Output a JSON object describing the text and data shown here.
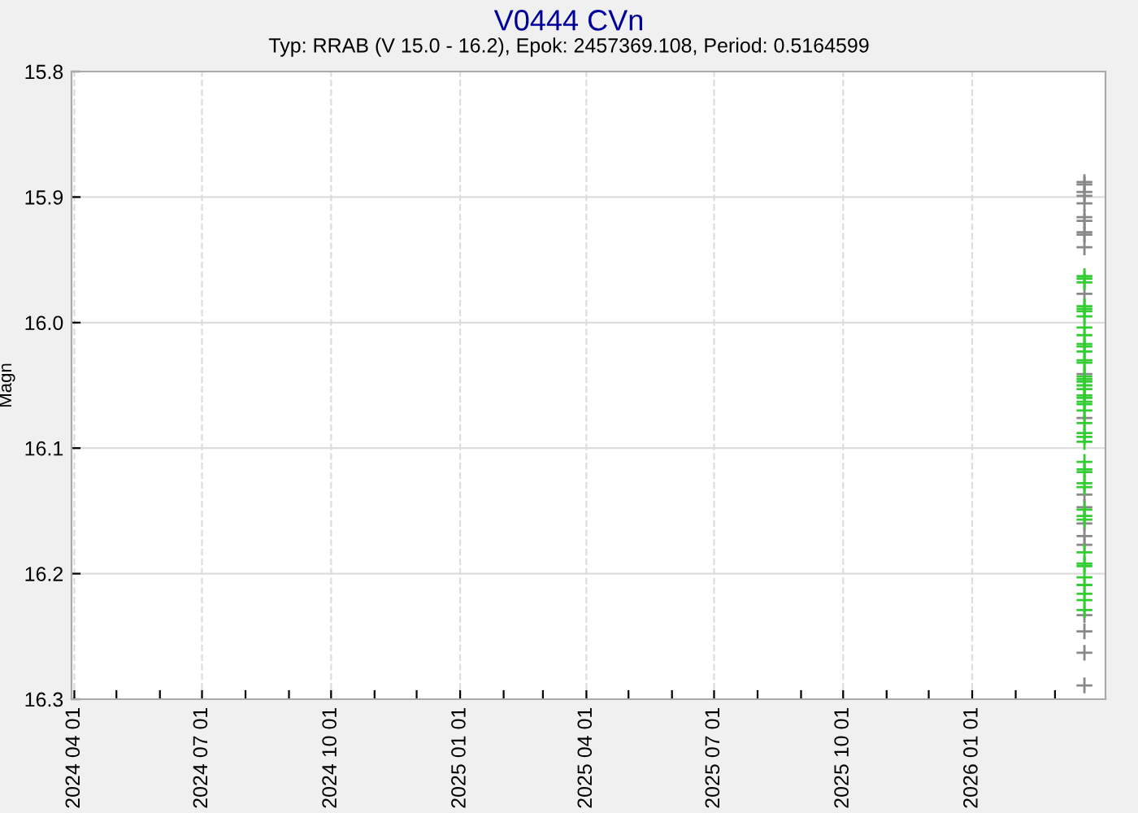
{
  "chart_data": {
    "type": "scatter",
    "title": "V0444 CVn",
    "subtitle": "Typ: RRAB (V 15.0 - 16.2), Epok: 2457369.108, Period: 0.5164599",
    "ylabel": "Magn",
    "series": [
      {
        "color": "#888888",
        "x": [
          "2026-03-22",
          "2026-03-22",
          "2026-03-22",
          "2026-03-22",
          "2026-03-22",
          "2026-03-22",
          "2026-03-22",
          "2026-03-22",
          "2026-03-22",
          "2026-03-22",
          "2026-03-22",
          "2026-03-22",
          "2026-03-22",
          "2026-03-22",
          "2026-03-22",
          "2026-03-22",
          "2026-03-22",
          "2026-03-22",
          "2026-03-22",
          "2026-03-22",
          "2026-03-22",
          "2026-03-22"
        ],
        "values": [
          15.888,
          15.89,
          15.896,
          15.899,
          15.905,
          15.916,
          15.919,
          15.928,
          15.93,
          15.94,
          15.977,
          16.041,
          16.076,
          16.137,
          16.147,
          16.16,
          16.17,
          16.177,
          16.233,
          16.246,
          16.263,
          16.289
        ]
      },
      {
        "color": "#33cc33",
        "x": [
          "2026-03-22",
          "2026-03-22",
          "2026-03-22",
          "2026-03-22",
          "2026-03-22",
          "2026-03-22",
          "2026-03-22",
          "2026-03-22",
          "2026-03-22",
          "2026-03-22",
          "2026-03-22",
          "2026-03-22",
          "2026-03-22",
          "2026-03-22",
          "2026-03-22",
          "2026-03-22",
          "2026-03-22",
          "2026-03-22",
          "2026-03-22",
          "2026-03-22",
          "2026-03-22",
          "2026-03-22",
          "2026-03-22",
          "2026-03-22",
          "2026-03-22",
          "2026-03-22",
          "2026-03-22",
          "2026-03-22",
          "2026-03-22",
          "2026-03-22",
          "2026-03-22",
          "2026-03-22",
          "2026-03-22",
          "2026-03-22",
          "2026-03-22",
          "2026-03-22",
          "2026-03-22",
          "2026-03-22",
          "2026-03-22",
          "2026-03-22",
          "2026-03-22",
          "2026-03-22",
          "2026-03-22",
          "2026-03-22"
        ],
        "values": [
          15.963,
          15.965,
          15.968,
          15.987,
          15.989,
          15.991,
          15.995,
          16.004,
          16.01,
          16.017,
          16.019,
          16.023,
          16.03,
          16.032,
          16.043,
          16.045,
          16.047,
          16.05,
          16.053,
          16.058,
          16.06,
          16.063,
          16.065,
          16.07,
          16.08,
          16.088,
          16.091,
          16.095,
          16.111,
          16.117,
          16.119,
          16.128,
          16.131,
          16.149,
          16.154,
          16.157,
          16.183,
          16.192,
          16.194,
          16.203,
          16.209,
          16.216,
          16.221,
          16.229
        ]
      }
    ],
    "xlim": [
      "2024-03-30",
      "2026-04-06"
    ],
    "ylim": [
      16.3,
      15.8
    ],
    "xticks": [
      {
        "value": "2024-04-01",
        "label": "2024 04 01"
      },
      {
        "value": "2024-05-01",
        "label": null
      },
      {
        "value": "2024-06-01",
        "label": null
      },
      {
        "value": "2024-07-01",
        "label": "2024 07 01"
      },
      {
        "value": "2024-08-01",
        "label": null
      },
      {
        "value": "2024-09-01",
        "label": null
      },
      {
        "value": "2024-10-01",
        "label": "2024 10 01"
      },
      {
        "value": "2024-11-01",
        "label": null
      },
      {
        "value": "2024-12-01",
        "label": null
      },
      {
        "value": "2025-01-01",
        "label": "2025 01 01"
      },
      {
        "value": "2025-02-01",
        "label": null
      },
      {
        "value": "2025-03-01",
        "label": null
      },
      {
        "value": "2025-04-01",
        "label": "2025 04 01"
      },
      {
        "value": "2025-05-01",
        "label": null
      },
      {
        "value": "2025-06-01",
        "label": null
      },
      {
        "value": "2025-07-01",
        "label": "2025 07 01"
      },
      {
        "value": "2025-08-01",
        "label": null
      },
      {
        "value": "2025-09-01",
        "label": null
      },
      {
        "value": "2025-10-01",
        "label": "2025 10 01"
      },
      {
        "value": "2025-11-01",
        "label": null
      },
      {
        "value": "2025-12-01",
        "label": null
      },
      {
        "value": "2026-01-01",
        "label": "2026 01 01"
      },
      {
        "value": "2026-02-01",
        "label": null
      },
      {
        "value": "2026-03-01",
        "label": null
      }
    ],
    "yticks": [
      {
        "value": 15.8,
        "label": "15.8"
      },
      {
        "value": 15.9,
        "label": "15.9"
      },
      {
        "value": 16.0,
        "label": "16.0"
      },
      {
        "value": 16.1,
        "label": "16.1"
      },
      {
        "value": 16.2,
        "label": "16.2"
      },
      {
        "value": 16.3,
        "label": "16.3"
      }
    ],
    "grid": true,
    "marker": "cross",
    "legend": false
  }
}
